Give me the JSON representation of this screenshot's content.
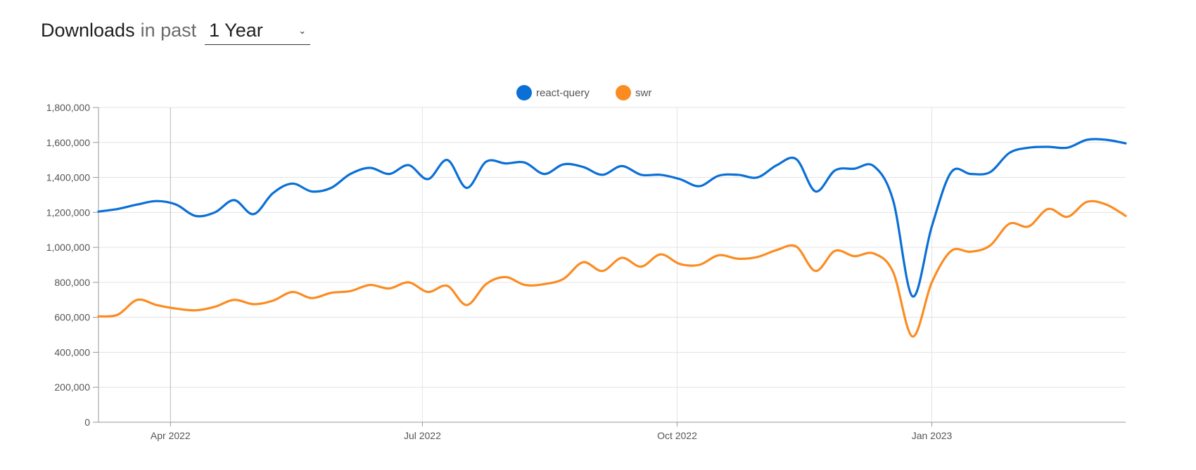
{
  "header": {
    "title": "Downloads",
    "in_past": "in past",
    "period": "1 Year"
  },
  "colors": {
    "react_query": "#0a6fd6",
    "swr": "#fb8c22",
    "grid": "#e3e3e3",
    "axis": "#999999",
    "tick_text": "#555555"
  },
  "chart_data": {
    "type": "line",
    "title": "",
    "xlabel": "",
    "ylabel": "",
    "ylim": [
      0,
      1800000
    ],
    "yticks": [
      0,
      200000,
      400000,
      600000,
      800000,
      1000000,
      1200000,
      1400000,
      1600000,
      1800000
    ],
    "ytick_labels": [
      "0",
      "200,000",
      "400,000",
      "600,000",
      "800,000",
      "1,000,000",
      "1,200,000",
      "1,400,000",
      "1,600,000",
      "1,800,000"
    ],
    "xlim": [
      "2022-03-06",
      "2023-03-12"
    ],
    "xticks": [
      "2022-04-01",
      "2022-07-01",
      "2022-10-01",
      "2023-01-01"
    ],
    "xtick_labels": [
      "Apr 2022",
      "Jul 2022",
      "Oct 2022",
      "Jan 2023"
    ],
    "grid": true,
    "legend_position": "top-center",
    "x": [
      "2022-03-06",
      "2022-03-13",
      "2022-03-20",
      "2022-03-27",
      "2022-04-03",
      "2022-04-10",
      "2022-04-17",
      "2022-04-24",
      "2022-05-01",
      "2022-05-08",
      "2022-05-15",
      "2022-05-22",
      "2022-05-29",
      "2022-06-05",
      "2022-06-12",
      "2022-06-19",
      "2022-06-26",
      "2022-07-03",
      "2022-07-10",
      "2022-07-17",
      "2022-07-24",
      "2022-07-31",
      "2022-08-07",
      "2022-08-14",
      "2022-08-21",
      "2022-08-28",
      "2022-09-04",
      "2022-09-11",
      "2022-09-18",
      "2022-09-25",
      "2022-10-02",
      "2022-10-09",
      "2022-10-16",
      "2022-10-23",
      "2022-10-30",
      "2022-11-06",
      "2022-11-13",
      "2022-11-20",
      "2022-11-27",
      "2022-12-04",
      "2022-12-11",
      "2022-12-18",
      "2022-12-25",
      "2023-01-01",
      "2023-01-08",
      "2023-01-15",
      "2023-01-22",
      "2023-01-29",
      "2023-02-05",
      "2023-02-12",
      "2023-02-19",
      "2023-02-26",
      "2023-03-05",
      "2023-03-12"
    ],
    "series": [
      {
        "name": "react-query",
        "values": [
          1205000,
          1220000,
          1245000,
          1265000,
          1245000,
          1180000,
          1200000,
          1270000,
          1190000,
          1310000,
          1365000,
          1320000,
          1340000,
          1420000,
          1455000,
          1420000,
          1470000,
          1390000,
          1500000,
          1340000,
          1490000,
          1480000,
          1485000,
          1420000,
          1475000,
          1460000,
          1415000,
          1465000,
          1415000,
          1415000,
          1390000,
          1350000,
          1410000,
          1415000,
          1400000,
          1470000,
          1505000,
          1320000,
          1440000,
          1450000,
          1465000,
          1270000,
          720000,
          1120000,
          1430000,
          1420000,
          1430000,
          1540000,
          1570000,
          1575000,
          1570000,
          1615000,
          1615000,
          1595000
        ]
      },
      {
        "name": "swr",
        "values": [
          605000,
          615000,
          700000,
          670000,
          650000,
          640000,
          660000,
          700000,
          675000,
          695000,
          745000,
          710000,
          740000,
          750000,
          785000,
          765000,
          800000,
          745000,
          780000,
          670000,
          790000,
          830000,
          785000,
          790000,
          820000,
          915000,
          865000,
          940000,
          890000,
          960000,
          905000,
          900000,
          955000,
          935000,
          945000,
          985000,
          1005000,
          865000,
          980000,
          950000,
          965000,
          860000,
          490000,
          800000,
          980000,
          975000,
          1010000,
          1135000,
          1120000,
          1220000,
          1175000,
          1260000,
          1245000,
          1180000
        ]
      }
    ]
  }
}
